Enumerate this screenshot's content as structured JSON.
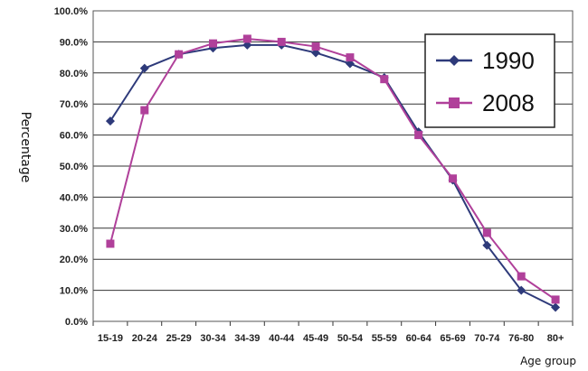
{
  "chart_data": {
    "type": "line",
    "title": "",
    "xlabel": "Age group",
    "ylabel": "Percentage",
    "categories": [
      "15-19",
      "20-24",
      "25-29",
      "30-34",
      "34-39",
      "40-44",
      "45-49",
      "50-54",
      "55-59",
      "60-64",
      "65-69",
      "70-74",
      "76-80",
      "80+"
    ],
    "ylim": [
      0,
      100
    ],
    "yticks": [
      "0.0%",
      "10.0%",
      "20.0%",
      "30.0%",
      "40.0%",
      "50.0%",
      "60.0%",
      "70.0%",
      "80.0%",
      "90.0%",
      "100.0%"
    ],
    "grid": true,
    "legend_position": "top-right",
    "series": [
      {
        "name": "1990",
        "color": "#2e3a7a",
        "marker": "diamond",
        "values": [
          64.5,
          81.5,
          86.0,
          88.0,
          89.0,
          89.0,
          86.5,
          83.0,
          78.5,
          61.0,
          45.5,
          24.5,
          10.0,
          4.5
        ]
      },
      {
        "name": "2008",
        "color": "#b0409a",
        "marker": "square",
        "values": [
          25.0,
          68.0,
          86.0,
          89.5,
          91.0,
          90.0,
          88.5,
          85.0,
          78.0,
          60.0,
          46.0,
          28.5,
          14.5,
          7.0
        ]
      }
    ]
  }
}
